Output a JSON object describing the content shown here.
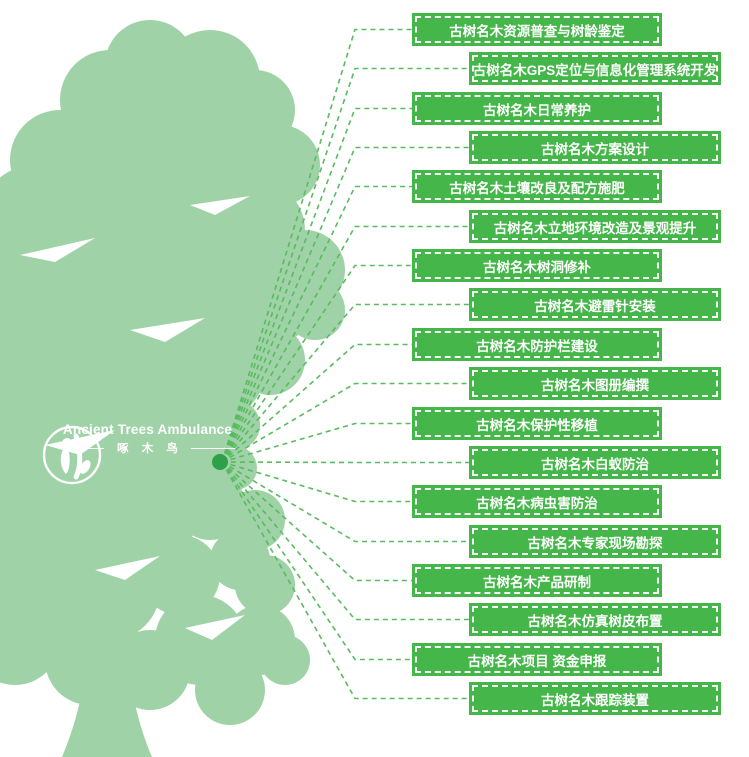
{
  "logo": {
    "title": "Ancient Trees Ambulance",
    "subtitle": "啄 木 鸟",
    "emblem_icon": "woodpecker-on-trunk-icon"
  },
  "services": [
    {
      "label": "古树名木资源普查与树龄鉴定"
    },
    {
      "label": "古树名木GPS定位与信息化管理系统开发"
    },
    {
      "label": "古树名木日常养护"
    },
    {
      "label": "古树名木方案设计"
    },
    {
      "label": "古树名木土壤改良及配方施肥"
    },
    {
      "label": "古树名木立地环境改造及景观提升"
    },
    {
      "label": "古树名木树洞修补"
    },
    {
      "label": "古树名木避雷针安装"
    },
    {
      "label": "古树名木防护栏建设"
    },
    {
      "label": "古树名木图册编撰"
    },
    {
      "label": "古树名木保护性移植"
    },
    {
      "label": "古树名木白蚁防治"
    },
    {
      "label": "古树名木病虫害防治"
    },
    {
      "label": "古树名木专家现场勘探"
    },
    {
      "label": "古树名木产品研制"
    },
    {
      "label": "古树名木仿真树皮布置"
    },
    {
      "label": "古树名木项目 资金申报"
    },
    {
      "label": "古树名木跟踪装置"
    }
  ],
  "colors": {
    "box_green": "#45b649",
    "tree_green": "#9fd2a6",
    "line_green": "#58bb5e",
    "hub_dot_green": "#2fa04a",
    "text_white": "#ffffff"
  }
}
